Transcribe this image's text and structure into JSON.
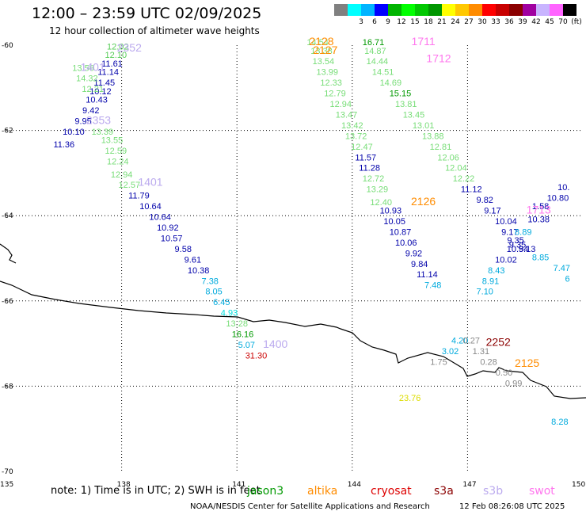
{
  "header": {
    "title": "12:00 – 23:59 UTC 02/09/2025",
    "subtitle": "12 hour collection of altimeter wave heights"
  },
  "legend": {
    "unit": "(ft)",
    "bins": [
      {
        "label": "",
        "color": "#808080"
      },
      {
        "label": "3",
        "color": "#00ffff"
      },
      {
        "label": "6",
        "color": "#00b4ff"
      },
      {
        "label": "9",
        "color": "#0000ff"
      },
      {
        "label": "12",
        "color": "#00b400"
      },
      {
        "label": "15",
        "color": "#00ff00"
      },
      {
        "label": "18",
        "color": "#00c800"
      },
      {
        "label": "21",
        "color": "#009600"
      },
      {
        "label": "24",
        "color": "#ffff00"
      },
      {
        "label": "27",
        "color": "#ffc800"
      },
      {
        "label": "30",
        "color": "#ff8c00"
      },
      {
        "label": "33",
        "color": "#ff0000"
      },
      {
        "label": "36",
        "color": "#c80000"
      },
      {
        "label": "39",
        "color": "#8b0000"
      },
      {
        "label": "42",
        "color": "#a000a0"
      },
      {
        "label": "45",
        "color": "#c8b4ff"
      },
      {
        "label": "70",
        "color": "#ff64ff"
      },
      {
        "label": "",
        "color": "#000000"
      }
    ]
  },
  "chart_data": {
    "type": "scatter",
    "xlim": [
      135,
      150
    ],
    "ylim": [
      -70,
      -60
    ],
    "x_ticks": [
      "135",
      "138",
      "141",
      "144",
      "147",
      "150"
    ],
    "y_ticks": [
      "-60",
      "-62",
      "-64",
      "-66",
      "-68",
      "-70"
    ],
    "grid": true,
    "values": [
      {
        "x": 137.9,
        "y": -60.1,
        "label": "12.02",
        "color": "#55cc55"
      },
      {
        "x": 137.85,
        "y": -60.3,
        "label": "12.10",
        "color": "#55cc55"
      },
      {
        "x": 137.75,
        "y": -60.5,
        "label": "11.61",
        "color": "#0000aa"
      },
      {
        "x": 137.65,
        "y": -60.7,
        "label": "11.14",
        "color": "#0000aa"
      },
      {
        "x": 137.55,
        "y": -60.95,
        "label": "11.45",
        "color": "#0000aa"
      },
      {
        "x": 137.45,
        "y": -61.15,
        "label": "10.12",
        "color": "#0000aa"
      },
      {
        "x": 137.35,
        "y": -61.35,
        "label": "10.43",
        "color": "#0000aa"
      },
      {
        "x": 137.2,
        "y": -61.6,
        "label": "9.42",
        "color": "#0000aa"
      },
      {
        "x": 137.0,
        "y": -61.85,
        "label": "9.95",
        "color": "#0000aa"
      },
      {
        "x": 136.75,
        "y": -62.1,
        "label": "10.10",
        "color": "#0000aa"
      },
      {
        "x": 136.5,
        "y": -62.4,
        "label": "11.36",
        "color": "#0000aa"
      },
      {
        "x": 137.0,
        "y": -60.6,
        "label": "13.56",
        "color": "#77dd77"
      },
      {
        "x": 137.1,
        "y": -60.85,
        "label": "14.32",
        "color": "#77dd77"
      },
      {
        "x": 137.25,
        "y": -61.1,
        "label": "12.21",
        "color": "#77dd77"
      },
      {
        "x": 137.5,
        "y": -62.1,
        "label": "13.39",
        "color": "#77dd77"
      },
      {
        "x": 137.75,
        "y": -62.3,
        "label": "13.55",
        "color": "#77dd77"
      },
      {
        "x": 137.85,
        "y": -62.55,
        "label": "12.59",
        "color": "#77dd77"
      },
      {
        "x": 137.9,
        "y": -62.8,
        "label": "12.24",
        "color": "#77dd77"
      },
      {
        "x": 138.0,
        "y": -63.1,
        "label": "12.94",
        "color": "#77dd77"
      },
      {
        "x": 138.2,
        "y": -63.35,
        "label": "12.57",
        "color": "#77dd77"
      },
      {
        "x": 138.45,
        "y": -63.6,
        "label": "11.79",
        "color": "#0000aa"
      },
      {
        "x": 138.75,
        "y": -63.85,
        "label": "10.64",
        "color": "#0000aa"
      },
      {
        "x": 139.0,
        "y": -64.1,
        "label": "10.64",
        "color": "#0000aa"
      },
      {
        "x": 139.2,
        "y": -64.35,
        "label": "10.92",
        "color": "#0000aa"
      },
      {
        "x": 139.3,
        "y": -64.6,
        "label": "10.57",
        "color": "#0000aa"
      },
      {
        "x": 139.6,
        "y": -64.85,
        "label": "9.58",
        "color": "#0000aa"
      },
      {
        "x": 139.85,
        "y": -65.1,
        "label": "9.61",
        "color": "#0000aa"
      },
      {
        "x": 140.0,
        "y": -65.35,
        "label": "10.38",
        "color": "#0000aa"
      },
      {
        "x": 140.3,
        "y": -65.6,
        "label": "7.38",
        "color": "#00aadd"
      },
      {
        "x": 140.4,
        "y": -65.85,
        "label": "8.05",
        "color": "#00aadd"
      },
      {
        "x": 140.6,
        "y": -66.1,
        "label": "6.45",
        "color": "#00aadd"
      },
      {
        "x": 140.8,
        "y": -66.35,
        "label": "4.93",
        "color": "#00dddd"
      },
      {
        "x": 141.0,
        "y": -66.6,
        "label": "13.28",
        "color": "#77dd77"
      },
      {
        "x": 141.15,
        "y": -66.85,
        "label": "16.16",
        "color": "#009900"
      },
      {
        "x": 141.25,
        "y": -67.1,
        "label": "5.07",
        "color": "#00aadd"
      },
      {
        "x": 141.5,
        "y": -67.35,
        "label": "31.30",
        "color": "#cc0000"
      },
      {
        "x": 143.1,
        "y": -60.0,
        "label": "14.54",
        "color": "#77dd77"
      },
      {
        "x": 143.2,
        "y": -60.2,
        "label": "13.38",
        "color": "#77dd77"
      },
      {
        "x": 143.25,
        "y": -60.45,
        "label": "13.54",
        "color": "#77dd77"
      },
      {
        "x": 143.35,
        "y": -60.7,
        "label": "13.99",
        "color": "#77dd77"
      },
      {
        "x": 143.45,
        "y": -60.95,
        "label": "12.33",
        "color": "#77dd77"
      },
      {
        "x": 143.55,
        "y": -61.2,
        "label": "12.79",
        "color": "#77dd77"
      },
      {
        "x": 143.7,
        "y": -61.45,
        "label": "12.94",
        "color": "#77dd77"
      },
      {
        "x": 143.85,
        "y": -61.7,
        "label": "13.47",
        "color": "#77dd77"
      },
      {
        "x": 144.0,
        "y": -61.95,
        "label": "13.42",
        "color": "#77dd77"
      },
      {
        "x": 144.1,
        "y": -62.2,
        "label": "13.72",
        "color": "#77dd77"
      },
      {
        "x": 144.25,
        "y": -62.45,
        "label": "12.47",
        "color": "#77dd77"
      },
      {
        "x": 144.35,
        "y": -62.7,
        "label": "11.57",
        "color": "#0000aa"
      },
      {
        "x": 144.45,
        "y": -62.95,
        "label": "11.28",
        "color": "#0000aa"
      },
      {
        "x": 144.55,
        "y": -63.2,
        "label": "12.72",
        "color": "#77dd77"
      },
      {
        "x": 144.65,
        "y": -63.45,
        "label": "13.29",
        "color": "#77dd77"
      },
      {
        "x": 144.75,
        "y": -63.75,
        "label": "12.40",
        "color": "#77dd77"
      },
      {
        "x": 145.0,
        "y": -63.95,
        "label": "10.93",
        "color": "#0000aa"
      },
      {
        "x": 145.1,
        "y": -64.2,
        "label": "10.05",
        "color": "#0000aa"
      },
      {
        "x": 145.25,
        "y": -64.45,
        "label": "10.87",
        "color": "#0000aa"
      },
      {
        "x": 145.4,
        "y": -64.7,
        "label": "10.06",
        "color": "#0000aa"
      },
      {
        "x": 145.6,
        "y": -64.95,
        "label": "9.92",
        "color": "#0000aa"
      },
      {
        "x": 145.75,
        "y": -65.2,
        "label": "9.84",
        "color": "#0000aa"
      },
      {
        "x": 145.95,
        "y": -65.45,
        "label": "11.14",
        "color": "#0000aa"
      },
      {
        "x": 146.1,
        "y": -65.7,
        "label": "7.48",
        "color": "#00aadd"
      },
      {
        "x": 144.55,
        "y": -60.0,
        "label": "16.71",
        "color": "#009900"
      },
      {
        "x": 144.6,
        "y": -60.2,
        "label": "14.87",
        "color": "#77dd77"
      },
      {
        "x": 144.65,
        "y": -60.45,
        "label": "14.44",
        "color": "#77dd77"
      },
      {
        "x": 144.8,
        "y": -60.7,
        "label": "14.51",
        "color": "#77dd77"
      },
      {
        "x": 145.0,
        "y": -60.95,
        "label": "14.69",
        "color": "#77dd77"
      },
      {
        "x": 145.25,
        "y": -61.2,
        "label": "15.15",
        "color": "#009900"
      },
      {
        "x": 145.4,
        "y": -61.45,
        "label": "13.81",
        "color": "#77dd77"
      },
      {
        "x": 145.6,
        "y": -61.7,
        "label": "13.45",
        "color": "#77dd77"
      },
      {
        "x": 145.85,
        "y": -61.95,
        "label": "13.01",
        "color": "#77dd77"
      },
      {
        "x": 146.1,
        "y": -62.2,
        "label": "13.88",
        "color": "#77dd77"
      },
      {
        "x": 146.3,
        "y": -62.45,
        "label": "12.81",
        "color": "#77dd77"
      },
      {
        "x": 146.5,
        "y": -62.7,
        "label": "12.06",
        "color": "#77dd77"
      },
      {
        "x": 146.7,
        "y": -62.95,
        "label": "12.04",
        "color": "#77dd77"
      },
      {
        "x": 146.9,
        "y": -63.2,
        "label": "12.22",
        "color": "#77dd77"
      },
      {
        "x": 147.1,
        "y": -63.45,
        "label": "11.12",
        "color": "#0000aa"
      },
      {
        "x": 147.45,
        "y": -63.7,
        "label": "9.82",
        "color": "#0000aa"
      },
      {
        "x": 147.65,
        "y": -63.95,
        "label": "9.17",
        "color": "#0000aa"
      },
      {
        "x": 148.0,
        "y": -64.2,
        "label": "10.04",
        "color": "#0000aa"
      },
      {
        "x": 148.1,
        "y": -64.45,
        "label": "9.17",
        "color": "#0000aa"
      },
      {
        "x": 148.25,
        "y": -64.65,
        "label": "9.35",
        "color": "#0000aa"
      },
      {
        "x": 148.3,
        "y": -64.85,
        "label": "10.54",
        "color": "#0000aa"
      },
      {
        "x": 148.0,
        "y": -65.1,
        "label": "10.02",
        "color": "#0000aa"
      },
      {
        "x": 147.75,
        "y": -65.35,
        "label": "8.43",
        "color": "#00aadd"
      },
      {
        "x": 147.6,
        "y": -65.6,
        "label": "8.91",
        "color": "#00aadd"
      },
      {
        "x": 147.45,
        "y": -65.85,
        "label": "7.10",
        "color": "#00aadd"
      },
      {
        "x": 148.3,
        "y": -64.75,
        "label": "9.35",
        "color": "#0000aa"
      },
      {
        "x": 148.45,
        "y": -64.45,
        "label": "8.89",
        "color": "#00aadd"
      },
      {
        "x": 148.55,
        "y": -64.85,
        "label": "9.13",
        "color": "#0000aa"
      },
      {
        "x": 148.85,
        "y": -64.15,
        "label": "10.38",
        "color": "#0000aa"
      },
      {
        "x": 148.9,
        "y": -63.85,
        "label": "1.58",
        "color": "#0000aa"
      },
      {
        "x": 148.9,
        "y": -65.05,
        "label": "8.85",
        "color": "#00aadd"
      },
      {
        "x": 149.5,
        "y": -63.4,
        "label": "10.",
        "color": "#0000aa"
      },
      {
        "x": 149.35,
        "y": -63.65,
        "label": "10.80",
        "color": "#0000aa"
      },
      {
        "x": 149.45,
        "y": -65.3,
        "label": "7.47",
        "color": "#00aadd"
      },
      {
        "x": 149.6,
        "y": -65.55,
        "label": "6",
        "color": "#00aadd"
      },
      {
        "x": 146.8,
        "y": -67.0,
        "label": "4.20",
        "color": "#00aadd"
      },
      {
        "x": 147.1,
        "y": -67.0,
        "label": "0.27",
        "color": "#888888"
      },
      {
        "x": 146.55,
        "y": -67.25,
        "label": "3.02",
        "color": "#00aadd"
      },
      {
        "x": 146.25,
        "y": -67.5,
        "label": "1.75",
        "color": "#888888"
      },
      {
        "x": 147.35,
        "y": -67.25,
        "label": "1.31",
        "color": "#888888"
      },
      {
        "x": 147.55,
        "y": -67.5,
        "label": "0.28",
        "color": "#888888"
      },
      {
        "x": 147.95,
        "y": -67.75,
        "label": "0.50",
        "color": "#888888"
      },
      {
        "x": 148.2,
        "y": -68.0,
        "label": "0.99",
        "color": "#888888"
      },
      {
        "x": 145.5,
        "y": -68.35,
        "label": "23.76",
        "color": "#dddd00"
      },
      {
        "x": 149.4,
        "y": -68.9,
        "label": "8.28",
        "color": "#00aadd"
      }
    ],
    "pass_labels": [
      {
        "x": 138.2,
        "y": -60.15,
        "label": "2352",
        "color": "#bbaaee"
      },
      {
        "x": 137.25,
        "y": -60.6,
        "label": "1401",
        "color": "#bbaaee"
      },
      {
        "x": 137.4,
        "y": -61.85,
        "label": "2353",
        "color": "#bbaaee"
      },
      {
        "x": 138.75,
        "y": -63.3,
        "label": "1401",
        "color": "#bbaaee"
      },
      {
        "x": 142.0,
        "y": -67.1,
        "label": "1400",
        "color": "#bbaaee"
      },
      {
        "x": 143.2,
        "y": -60.0,
        "label": "2128",
        "color": "#ff8c00"
      },
      {
        "x": 143.3,
        "y": -60.2,
        "label": "2127",
        "color": "#ff8c00"
      },
      {
        "x": 145.85,
        "y": -63.75,
        "label": "2126",
        "color": "#ff8c00"
      },
      {
        "x": 145.85,
        "y": -60.0,
        "label": "1711",
        "color": "#ff77ee"
      },
      {
        "x": 146.25,
        "y": -60.4,
        "label": "1712",
        "color": "#ff77ee"
      },
      {
        "x": 148.85,
        "y": -63.95,
        "label": "1713",
        "color": "#ff77ee"
      },
      {
        "x": 147.8,
        "y": -67.05,
        "label": "2252",
        "color": "#8b0000"
      },
      {
        "x": 148.55,
        "y": -67.55,
        "label": "2125",
        "color": "#ff8c00"
      }
    ]
  },
  "footer": {
    "note": "note:  1) Time is in UTC; 2) SWH is in feet",
    "satellites": [
      {
        "name": "jason3",
        "color": "#009900"
      },
      {
        "name": "altika",
        "color": "#ff8c00"
      },
      {
        "name": "cryosat",
        "color": "#dd0000"
      },
      {
        "name": "s3a",
        "color": "#8b0000"
      },
      {
        "name": "s3b",
        "color": "#bbaaee"
      },
      {
        "name": "swot",
        "color": "#ff77ee"
      }
    ],
    "credit": "NOAA/NESDIS Center for Satellite Applications and Research",
    "generated": "12 Feb 08:26:08 UTC 2025"
  }
}
